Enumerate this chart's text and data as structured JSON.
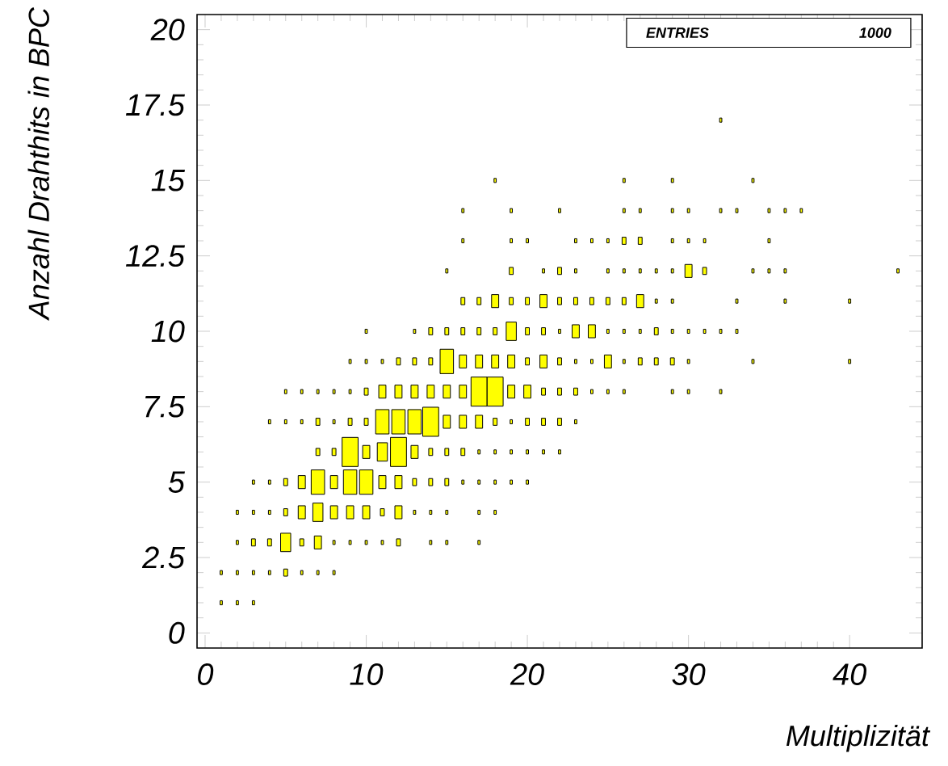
{
  "chart_data": {
    "type": "bubble",
    "xlabel": "Multiplizität",
    "ylabel": "Anzahl Drahthits in BPC",
    "annotations": [
      "ENTRIES",
      "1000"
    ],
    "color": "#ffff00",
    "marker": "square",
    "grid": false,
    "xlim": [
      -0.5,
      44.5
    ],
    "ylim": [
      -0.5,
      20.5
    ],
    "xticks": [
      0,
      10,
      20,
      30,
      40
    ],
    "yticks": [
      0,
      2.5,
      5,
      7.5,
      10,
      12.5,
      15,
      17.5,
      20
    ],
    "x": [
      1,
      2,
      3,
      1,
      2,
      3,
      4,
      5,
      6,
      7,
      8,
      2,
      3,
      4,
      5,
      6,
      7,
      8,
      9,
      10,
      11,
      12,
      14,
      15,
      17,
      2,
      3,
      4,
      5,
      6,
      7,
      8,
      9,
      10,
      11,
      12,
      13,
      14,
      15,
      17,
      18,
      3,
      4,
      5,
      6,
      7,
      8,
      9,
      10,
      11,
      12,
      13,
      14,
      15,
      16,
      17,
      18,
      19,
      20,
      7,
      8,
      9,
      10,
      11,
      12,
      13,
      14,
      15,
      16,
      17,
      18,
      19,
      20,
      21,
      22,
      4,
      5,
      6,
      7,
      8,
      9,
      10,
      11,
      12,
      13,
      14,
      15,
      16,
      17,
      18,
      19,
      20,
      21,
      22,
      23,
      5,
      6,
      7,
      8,
      9,
      10,
      11,
      12,
      13,
      14,
      15,
      16,
      17,
      18,
      19,
      20,
      21,
      22,
      23,
      24,
      25,
      26,
      29,
      30,
      32,
      9,
      10,
      11,
      12,
      13,
      14,
      15,
      16,
      17,
      18,
      19,
      20,
      21,
      22,
      23,
      24,
      25,
      26,
      27,
      28,
      29,
      30,
      34,
      40,
      10,
      13,
      14,
      15,
      16,
      17,
      18,
      19,
      20,
      21,
      22,
      23,
      24,
      25,
      26,
      27,
      28,
      29,
      30,
      31,
      32,
      33,
      16,
      17,
      18,
      19,
      20,
      21,
      22,
      23,
      24,
      25,
      26,
      27,
      28,
      29,
      33,
      36,
      40,
      15,
      19,
      21,
      22,
      23,
      25,
      26,
      27,
      28,
      29,
      30,
      31,
      34,
      35,
      36,
      43,
      16,
      19,
      20,
      23,
      24,
      25,
      26,
      27,
      29,
      30,
      31,
      35,
      16,
      19,
      22,
      26,
      27,
      29,
      30,
      32,
      33,
      35,
      36,
      37,
      18,
      26,
      29,
      34,
      32
    ],
    "values": [
      1,
      1,
      1,
      2,
      2,
      2,
      2,
      2,
      2,
      2,
      2,
      3,
      3,
      3,
      3,
      3,
      3,
      3,
      3,
      3,
      3,
      3,
      3,
      3,
      3,
      4,
      4,
      4,
      4,
      4,
      4,
      4,
      4,
      4,
      4,
      4,
      4,
      4,
      4,
      4,
      4,
      5,
      5,
      5,
      5,
      5,
      5,
      5,
      5,
      5,
      5,
      5,
      5,
      5,
      5,
      5,
      5,
      5,
      5,
      6,
      6,
      6,
      6,
      6,
      6,
      6,
      6,
      6,
      6,
      6,
      6,
      6,
      6,
      6,
      6,
      7,
      7,
      7,
      7,
      7,
      7,
      7,
      7,
      7,
      7,
      7,
      7,
      7,
      7,
      7,
      7,
      7,
      7,
      7,
      7,
      8,
      8,
      8,
      8,
      8,
      8,
      8,
      8,
      8,
      8,
      8,
      8,
      8,
      8,
      8,
      8,
      8,
      8,
      8,
      8,
      8,
      8,
      8,
      8,
      8,
      9,
      9,
      9,
      9,
      9,
      9,
      9,
      9,
      9,
      9,
      9,
      9,
      9,
      9,
      9,
      9,
      9,
      9,
      9,
      9,
      9,
      9,
      9,
      9,
      10,
      10,
      10,
      10,
      10,
      10,
      10,
      10,
      10,
      10,
      10,
      10,
      10,
      10,
      10,
      10,
      10,
      10,
      10,
      10,
      10,
      10,
      11,
      11,
      11,
      11,
      11,
      11,
      11,
      11,
      11,
      11,
      11,
      11,
      11,
      11,
      11,
      11,
      11,
      12,
      12,
      12,
      12,
      12,
      12,
      12,
      12,
      12,
      12,
      12,
      12,
      12,
      12,
      12,
      12,
      13,
      13,
      13,
      13,
      13,
      13,
      13,
      13,
      13,
      13,
      13,
      13,
      14,
      14,
      14,
      14,
      14,
      14,
      14,
      14,
      14,
      14,
      14,
      14,
      15,
      15,
      15,
      15,
      17
    ],
    "sizes": [
      0.02,
      0.02,
      0.02,
      0.02,
      0.02,
      0.02,
      0.02,
      0.06,
      0.02,
      0.02,
      0.02,
      0.02,
      0.06,
      0.06,
      0.4,
      0.06,
      0.2,
      0.02,
      0.02,
      0.02,
      0.02,
      0.06,
      0.02,
      0.02,
      0.02,
      0.02,
      0.02,
      0.02,
      0.06,
      0.2,
      0.4,
      0.2,
      0.2,
      0.2,
      0.06,
      0.2,
      0.02,
      0.02,
      0.02,
      0.02,
      0.02,
      0.02,
      0.02,
      0.06,
      0.2,
      0.7,
      0.2,
      0.7,
      0.7,
      0.2,
      0.2,
      0.06,
      0.06,
      0.06,
      0.02,
      0.02,
      0.02,
      0.02,
      0.02,
      0.06,
      0.06,
      1,
      0.2,
      0.4,
      1,
      0.2,
      0.06,
      0.06,
      0.06,
      0.02,
      0.02,
      0.02,
      0.02,
      0.02,
      0.02,
      0.02,
      0.02,
      0.02,
      0.06,
      0.02,
      0.06,
      0.06,
      0.7,
      0.7,
      0.7,
      1,
      0.2,
      0.2,
      0.2,
      0.06,
      0.02,
      0.06,
      0.06,
      0.06,
      0.02,
      0.02,
      0.02,
      0.02,
      0.02,
      0.02,
      0.06,
      0.2,
      0.2,
      0.2,
      0.2,
      0.2,
      0.2,
      1,
      1,
      0.2,
      0.2,
      0.06,
      0.06,
      0.06,
      0.02,
      0.02,
      0.02,
      0.02,
      0.02,
      0.02,
      0.02,
      0.02,
      0.02,
      0.06,
      0.06,
      0.06,
      0.7,
      0.2,
      0.2,
      0.2,
      0.2,
      0.06,
      0.2,
      0.06,
      0.02,
      0.02,
      0.2,
      0.02,
      0.06,
      0.06,
      0.06,
      0.02,
      0.02,
      0.02,
      0.02,
      0.02,
      0.06,
      0.06,
      0.06,
      0.06,
      0.06,
      0.4,
      0.06,
      0.06,
      0.02,
      0.2,
      0.2,
      0.02,
      0.02,
      0.02,
      0.06,
      0.02,
      0.02,
      0.02,
      0.02,
      0.02,
      0.06,
      0.06,
      0.2,
      0.06,
      0.06,
      0.2,
      0.06,
      0.06,
      0.06,
      0.06,
      0.06,
      0.2,
      0.02,
      0.02,
      0.02,
      0.02,
      0.02,
      0.02,
      0.06,
      0.02,
      0.06,
      0.02,
      0.02,
      0.02,
      0.02,
      0.02,
      0.02,
      0.2,
      0.06,
      0.02,
      0.02,
      0.02,
      0.02,
      0.02,
      0.02,
      0.02,
      0.02,
      0.02,
      0.02,
      0.06,
      0.06,
      0.02,
      0.02,
      0.02,
      0.02,
      0.02,
      0.02,
      0.02,
      0.02,
      0.02,
      0.02,
      0.02,
      0.02,
      0.02,
      0.02,
      0.02,
      0.02,
      0.02,
      0.02,
      0.02,
      0.02,
      0.02
    ]
  }
}
